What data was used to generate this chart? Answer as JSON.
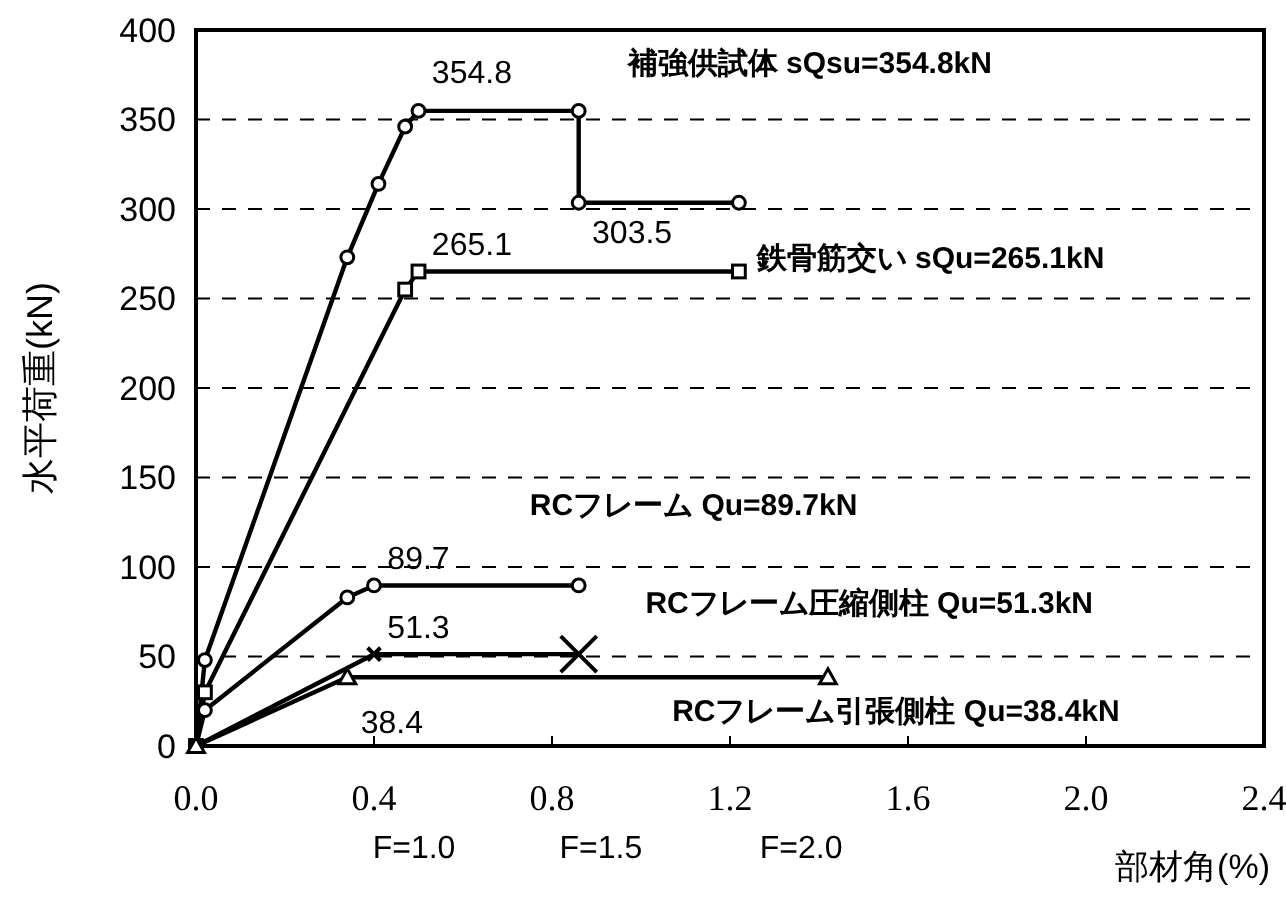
{
  "chart_data": {
    "type": "line",
    "xlabel": "部材角(%)",
    "ylabel": "水平荷重(kN)",
    "xlim": [
      0,
      2.4
    ],
    "ylim": [
      0,
      400
    ],
    "xticks": [
      {
        "value": 0,
        "label": "0.0"
      },
      0.4,
      0.8,
      1.2,
      1.6,
      {
        "value": 2,
        "label": "2.0"
      },
      2.4
    ],
    "yticks": [
      0,
      50,
      100,
      150,
      200,
      250,
      300,
      350,
      400
    ],
    "grid": "y",
    "line_style": "solid",
    "series": [
      {
        "name": "補強供試体 sQsu=354.8kN",
        "color": "#000000",
        "marker": "circle",
        "x": [
          0,
          0.02,
          0.34,
          0.41,
          0.47,
          0.5,
          0.86,
          0.86,
          1.22
        ],
        "values": [
          0,
          48,
          273,
          314,
          346,
          354.8,
          354.8,
          303.5,
          303.5
        ]
      },
      {
        "name": "鉄骨筋交い sQu=265.1kN",
        "color": "#000000",
        "marker": "square",
        "x": [
          0,
          0.02,
          0.47,
          0.5,
          1.22
        ],
        "values": [
          0,
          30,
          255,
          265.1,
          265.1
        ]
      },
      {
        "name": "RCフレーム Qu=89.7kN",
        "color": "#000000",
        "marker": "circle",
        "x": [
          0,
          0.02,
          0.34,
          0.4,
          0.86
        ],
        "values": [
          0,
          20,
          83,
          89.7,
          89.7
        ]
      },
      {
        "name": "RCフレーム圧縮側柱 Qu=51.3kN",
        "color": "#000000",
        "marker": "cross",
        "x": [
          0,
          0.4,
          0.86
        ],
        "values": [
          0,
          51.3,
          51.3
        ]
      },
      {
        "name": "RCフレーム引張側柱 Qu=38.4kN",
        "color": "#000000",
        "marker": "triangle",
        "x": [
          0,
          0.34,
          1.42
        ],
        "values": [
          0,
          38.4,
          38.4
        ]
      }
    ],
    "annotations": [
      {
        "text": "354.8",
        "x": 0.5,
        "y": 354.8
      },
      {
        "text": "303.5",
        "x": 0.86,
        "y": 303.5
      },
      {
        "text": "265.1",
        "x": 0.5,
        "y": 265.1
      },
      {
        "text": "89.7",
        "x": 0.4,
        "y": 89.7
      },
      {
        "text": "51.3",
        "x": 0.4,
        "y": 51.3
      },
      {
        "text": "38.4",
        "x": 0.34,
        "y": 38.4
      },
      "F=1.0",
      "F=1.5",
      "F=2.0"
    ]
  }
}
